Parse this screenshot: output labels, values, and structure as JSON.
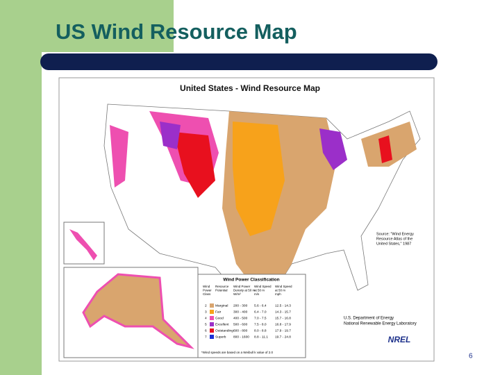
{
  "header": {
    "title": "US Wind Resource Map"
  },
  "map": {
    "title": "United States - Wind Resource Map",
    "source": [
      "Source: \"Wind Energy",
      "Resource Atlas of the",
      "United States,\" 1987"
    ],
    "agency": [
      "U.S. Department of Energy",
      "National Renewable Energy Laboratory"
    ],
    "logo": "NREL"
  },
  "legend": {
    "title": "Wind Power Classification",
    "headers": [
      [
        "Wind",
        "Power",
        "Class"
      ],
      [
        "Resource",
        "Potential"
      ],
      [
        "Wind Power",
        "Density at 50 m",
        "W/m²"
      ],
      [
        "Wind Speed",
        "at 50 m",
        "m/s"
      ],
      [
        "Wind Speed",
        "at 50 m",
        "mph"
      ]
    ],
    "rows": [
      {
        "color": "#d9a56e",
        "cells": [
          "2",
          "Marginal",
          "200 - 300",
          "5.6 - 6.4",
          "12.5 - 14.3"
        ]
      },
      {
        "color": "#f7a21b",
        "cells": [
          "3",
          "Fair",
          "300 - 400",
          "6.4 - 7.0",
          "14.3 - 15.7"
        ]
      },
      {
        "color": "#ee4fb0",
        "cells": [
          "4",
          "Good",
          "400 - 500",
          "7.0 - 7.5",
          "15.7 - 16.8"
        ]
      },
      {
        "color": "#9b2fc9",
        "cells": [
          "5",
          "Excellent",
          "500 - 600",
          "7.5 - 8.0",
          "16.8 - 17.9"
        ]
      },
      {
        "color": "#e8101e",
        "cells": [
          "6",
          "Outstanding",
          "600 - 800",
          "8.0 - 8.8",
          "17.9 - 19.7"
        ]
      },
      {
        "color": "#1b2fd6",
        "cells": [
          "7",
          "Superb",
          "800 - 1600",
          "8.8 - 11.1",
          "19.7 - 24.8"
        ]
      }
    ],
    "footnote": "*Wind speeds are based on a Weibull k value of 2.0"
  },
  "page_number": "6"
}
